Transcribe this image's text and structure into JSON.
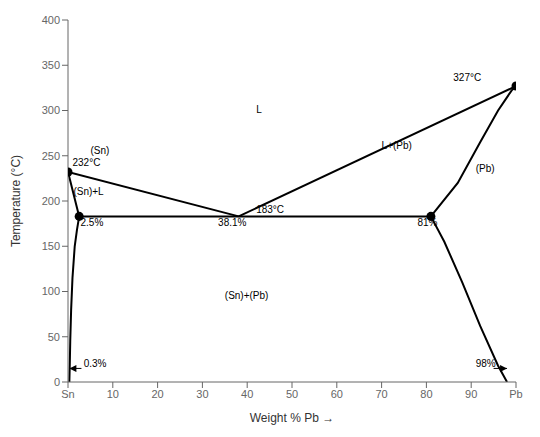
{
  "chart_data": {
    "type": "line",
    "xlabel": "Weight % Pb →",
    "ylabel": "Temperature (°C)",
    "xlim": [
      0,
      100
    ],
    "ylim": [
      0,
      400
    ],
    "xticks": [
      {
        "value": 0,
        "label": "Sn"
      },
      10,
      20,
      30,
      40,
      50,
      60,
      70,
      80,
      90,
      {
        "value": 100,
        "label": "Pb"
      }
    ],
    "yticks": [
      0,
      50,
      100,
      150,
      200,
      250,
      300,
      350,
      400
    ],
    "grid": false,
    "color": "#000000",
    "series": [
      {
        "type": "line",
        "x": [
          0,
          38.1
        ],
        "values": [
          232,
          183
        ]
      },
      {
        "type": "line",
        "x": [
          38.1,
          100
        ],
        "values": [
          183,
          327
        ]
      },
      {
        "type": "line",
        "x": [
          0,
          2.5
        ],
        "values": [
          232,
          183
        ]
      },
      {
        "type": "line",
        "x": [
          0.3,
          0.4,
          0.5,
          0.7,
          1.0,
          1.5,
          2.0,
          2.5
        ],
        "values": [
          0,
          20,
          45,
          80,
          115,
          150,
          168,
          183
        ]
      },
      {
        "type": "line",
        "x": [
          81,
          87,
          92,
          96,
          99,
          100
        ],
        "values": [
          183,
          220,
          265,
          300,
          322,
          327
        ]
      },
      {
        "type": "line",
        "x": [
          81,
          84,
          88,
          92,
          96,
          98
        ],
        "values": [
          183,
          155,
          110,
          62,
          18,
          0
        ]
      },
      {
        "type": "line",
        "x": [
          2.5,
          81
        ],
        "values": [
          183,
          183
        ]
      },
      {
        "type": "scatter",
        "marker": "o",
        "x": [
          100,
          0,
          2.5,
          81
        ],
        "values": [
          327,
          232,
          183,
          183
        ]
      }
    ],
    "annotations": [
      {
        "text": "232°C",
        "x": 1.0,
        "y": 236
      },
      {
        "text": "(Sn)",
        "x": 5.0,
        "y": 236
      },
      {
        "text": "(Sn)+L",
        "x": 1.2,
        "y": 204
      },
      {
        "text": "2.5%",
        "x": 2.8,
        "y": 170
      },
      {
        "text": "38.1%",
        "x": 33.5,
        "y": 170
      },
      {
        "text": "183°C",
        "x": 42,
        "y": 185
      },
      {
        "text": "81%",
        "x": 78,
        "y": 170
      },
      {
        "text": "327°C",
        "x": 86,
        "y": 330
      },
      {
        "text": "L",
        "x": 42,
        "y": 295
      },
      {
        "text": "L+(Pb)",
        "x": 70,
        "y": 255
      },
      {
        "text": "(Pb)",
        "x": 91,
        "y": 230
      },
      {
        "text": "(Sn)+(Pb)",
        "x": 35,
        "y": 90
      },
      {
        "text": "0.3%",
        "x": 3.5,
        "y": 14
      },
      {
        "text": "98%",
        "x": 91,
        "y": 14
      }
    ],
    "arrows": [
      {
        "x_from": 3.0,
        "x_to": 0.3,
        "y": 15
      },
      {
        "x_from": 95.0,
        "x_to": 98.0,
        "y": 15
      }
    ]
  }
}
